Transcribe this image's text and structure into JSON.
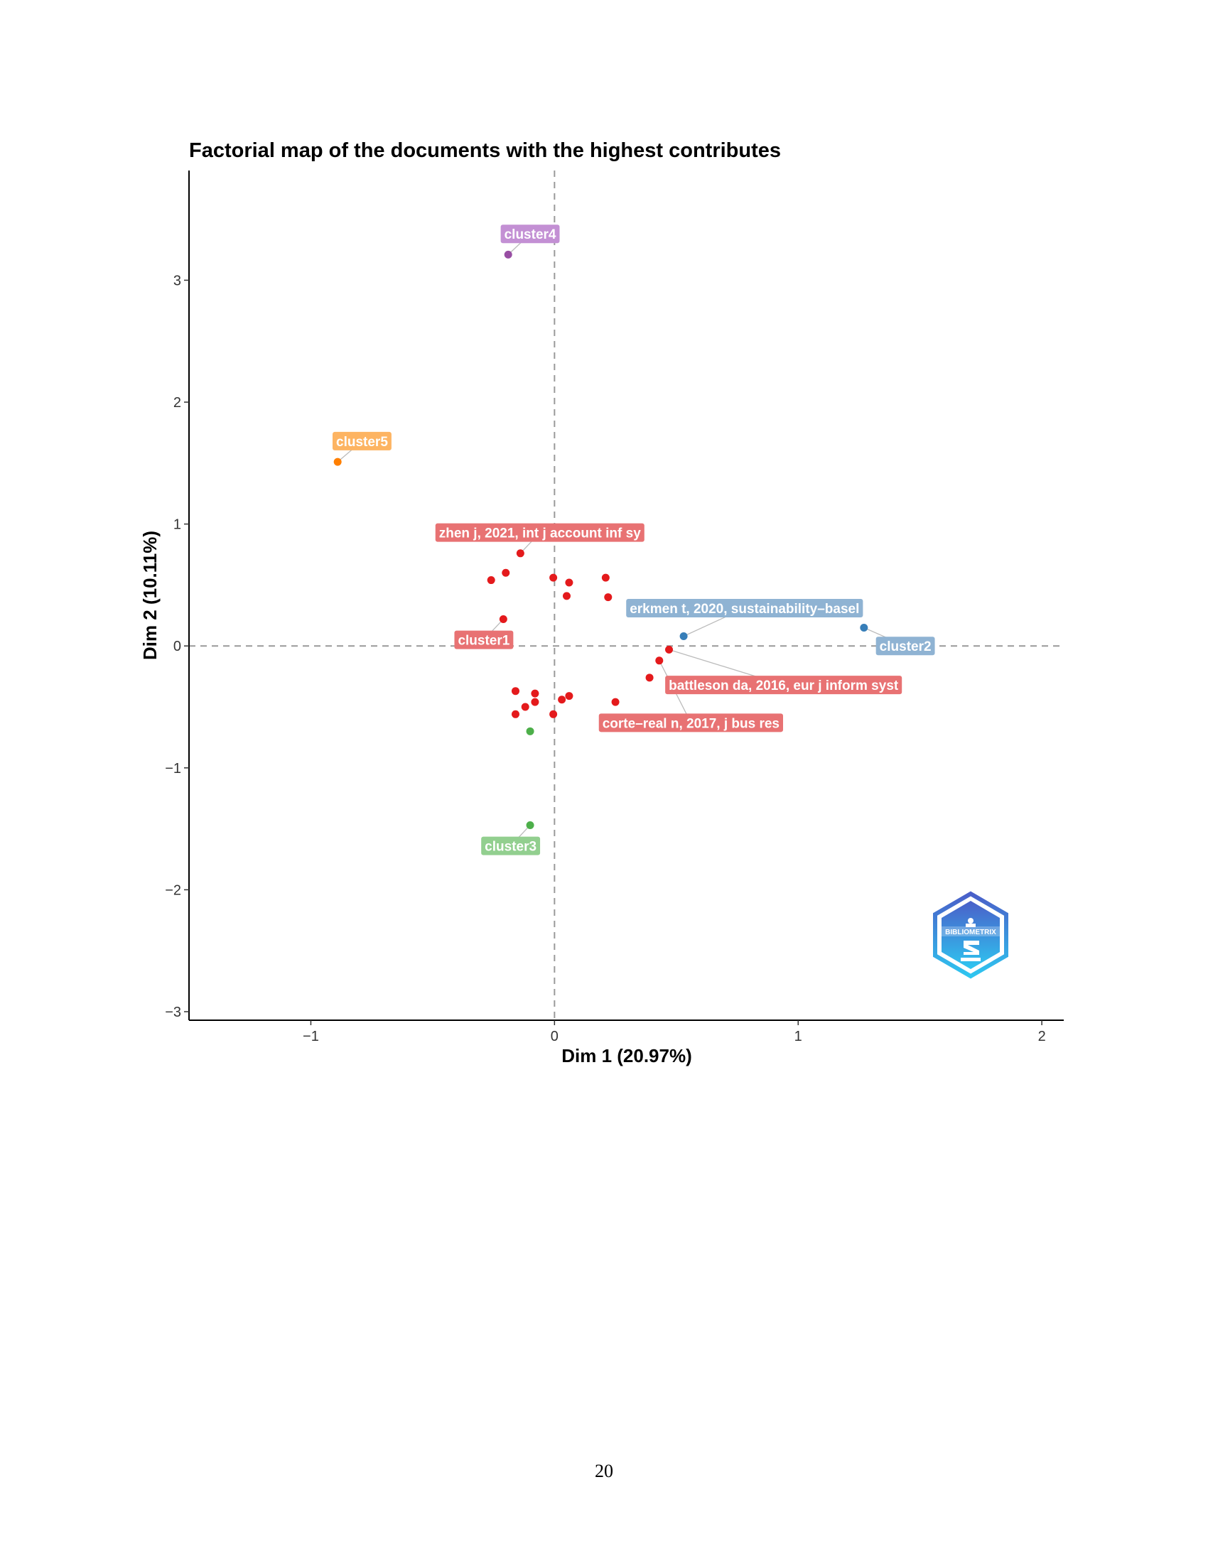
{
  "chart_data": {
    "type": "scatter",
    "title": "Factorial map of the documents with the highest contributes",
    "xlabel": "Dim 1 (20.97%)",
    "ylabel": "Dim 2 (10.11%)",
    "xlim": [
      -1.5,
      2.09
    ],
    "ylim": [
      -3.07,
      3.9
    ],
    "x_ticks": [
      -1,
      0,
      1,
      2
    ],
    "x_tick_labels": [
      "−1",
      "0",
      "1",
      "2"
    ],
    "y_ticks": [
      3,
      2,
      1,
      0,
      -1,
      -2,
      -3
    ],
    "y_tick_labels": [
      "3",
      "2",
      "1",
      "0",
      "−1",
      "−2",
      "−3"
    ],
    "reference_lines": {
      "x": 0,
      "y": 0
    },
    "grid": false,
    "series": [
      {
        "name": "cluster1",
        "color": "#e41a1c",
        "points": [
          {
            "x": -0.14,
            "y": 0.76
          },
          {
            "x": -0.2,
            "y": 0.6
          },
          {
            "x": -0.26,
            "y": 0.54
          },
          {
            "x": -0.005,
            "y": 0.56
          },
          {
            "x": 0.06,
            "y": 0.52
          },
          {
            "x": 0.05,
            "y": 0.41
          },
          {
            "x": 0.21,
            "y": 0.56
          },
          {
            "x": 0.22,
            "y": 0.4
          },
          {
            "x": -0.21,
            "y": 0.22
          },
          {
            "x": 0.47,
            "y": -0.03
          },
          {
            "x": 0.43,
            "y": -0.12
          },
          {
            "x": 0.39,
            "y": -0.26
          },
          {
            "x": 0.25,
            "y": -0.46
          },
          {
            "x": 0.06,
            "y": -0.41
          },
          {
            "x": 0.03,
            "y": -0.44
          },
          {
            "x": -0.08,
            "y": -0.39
          },
          {
            "x": -0.08,
            "y": -0.46
          },
          {
            "x": -0.16,
            "y": -0.37
          },
          {
            "x": -0.12,
            "y": -0.5
          },
          {
            "x": -0.16,
            "y": -0.56
          },
          {
            "x": -0.005,
            "y": -0.56
          }
        ]
      },
      {
        "name": "cluster2",
        "color": "#377eb8",
        "points": [
          {
            "x": 0.53,
            "y": 0.08
          },
          {
            "x": 1.27,
            "y": 0.15
          }
        ]
      },
      {
        "name": "cluster3",
        "color": "#4daf4a",
        "points": [
          {
            "x": -0.1,
            "y": -0.7
          },
          {
            "x": -0.1,
            "y": -1.47
          }
        ]
      },
      {
        "name": "cluster4",
        "color": "#984ea3",
        "points": [
          {
            "x": -0.19,
            "y": 3.21
          }
        ]
      },
      {
        "name": "cluster5",
        "color": "#ff7f00",
        "points": [
          {
            "x": -0.89,
            "y": 1.51
          }
        ]
      }
    ],
    "labels": [
      {
        "text": "cluster4",
        "x": -0.1,
        "y": 3.38,
        "anchor_x": -0.19,
        "anchor_y": 3.21,
        "color": "#c390d4"
      },
      {
        "text": "cluster5",
        "x": -0.79,
        "y": 1.68,
        "anchor_x": -0.89,
        "anchor_y": 1.51,
        "color": "#fdb462"
      },
      {
        "text": "zhen j, 2021, int j account inf sy",
        "x": -0.06,
        "y": 0.93,
        "anchor_x": -0.14,
        "anchor_y": 0.76,
        "color": "#e87273"
      },
      {
        "text": "erkmen t, 2020, sustainability–basel",
        "x": 0.78,
        "y": 0.31,
        "anchor_x": 0.53,
        "anchor_y": 0.08,
        "color": "#8fb3d3"
      },
      {
        "text": "cluster1",
        "x": -0.29,
        "y": 0.05,
        "anchor_x": -0.21,
        "anchor_y": 0.22,
        "color": "#e87273"
      },
      {
        "text": "cluster2",
        "x": 1.44,
        "y": 0.0,
        "anchor_x": 1.27,
        "anchor_y": 0.15,
        "color": "#8fb3d3"
      },
      {
        "text": "battleson da, 2016, eur j inform syst",
        "x": 0.94,
        "y": -0.32,
        "anchor_x": 0.47,
        "anchor_y": -0.03,
        "color": "#e87273"
      },
      {
        "text": "corte–real n, 2017, j bus res",
        "x": 0.56,
        "y": -0.63,
        "anchor_x": 0.43,
        "anchor_y": -0.12,
        "color": "#e87273"
      },
      {
        "text": "cluster3",
        "x": -0.18,
        "y": -1.64,
        "anchor_x": -0.1,
        "anchor_y": -1.47,
        "color": "#92cf8f"
      }
    ]
  },
  "logo": {
    "text": "BIBLIOMETRIX",
    "color_top": "#4a5fc9",
    "color_bottom": "#2ec6f0"
  },
  "page": {
    "number": "20"
  }
}
